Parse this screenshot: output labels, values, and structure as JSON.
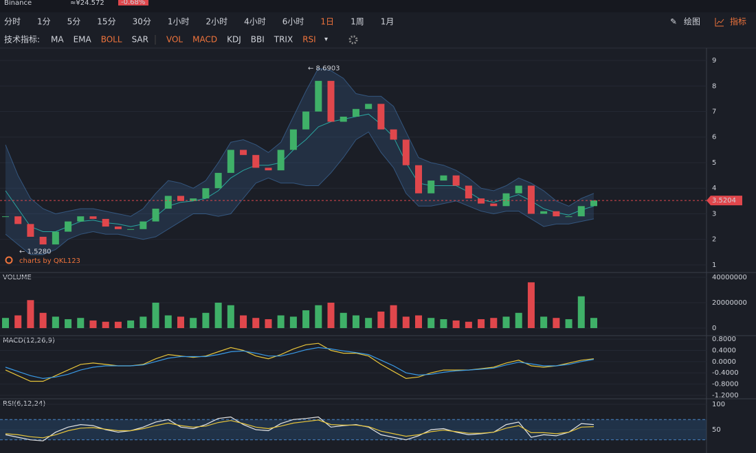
{
  "header": {
    "exchange": "Binance",
    "price": "≈¥24.572",
    "change": "-0.68%"
  },
  "toolbar": {
    "intervals": [
      {
        "label": "分时",
        "active": false
      },
      {
        "label": "1分",
        "active": false
      },
      {
        "label": "5分",
        "active": false
      },
      {
        "label": "15分",
        "active": false
      },
      {
        "label": "30分",
        "active": false
      },
      {
        "label": "1小时",
        "active": false
      },
      {
        "label": "2小时",
        "active": false
      },
      {
        "label": "4小时",
        "active": false
      },
      {
        "label": "6小时",
        "active": false
      },
      {
        "label": "1日",
        "active": true
      },
      {
        "label": "1周",
        "active": false
      },
      {
        "label": "1月",
        "active": false
      }
    ],
    "draw": "绘图",
    "indicators_button": "指标",
    "indicator_title": "技术指标:",
    "indicators": [
      {
        "label": "MA",
        "active": false
      },
      {
        "label": "EMA",
        "active": false
      },
      {
        "label": "BOLL",
        "active": true
      },
      {
        "label": "SAR",
        "active": false
      },
      {
        "label": "VOL",
        "active": true
      },
      {
        "label": "MACD",
        "active": true
      },
      {
        "label": "KDJ",
        "active": false
      },
      {
        "label": "BBI",
        "active": false
      },
      {
        "label": "TRIX",
        "active": false
      },
      {
        "label": "RSI",
        "active": true
      }
    ]
  },
  "chart_data": [
    {
      "type": "candlestick",
      "up_color": "#3fb068",
      "down_color": "#e0474c",
      "band_color": "#4a86c8",
      "mid_color": "#2aa6a0",
      "close": [
        2.9,
        2.6,
        2.1,
        1.8,
        2.3,
        2.7,
        2.9,
        2.8,
        2.5,
        2.4,
        2.4,
        2.7,
        3.2,
        3.7,
        3.5,
        3.6,
        4.0,
        4.6,
        5.5,
        5.3,
        4.8,
        4.7,
        5.5,
        6.3,
        7.0,
        8.2,
        6.6,
        6.8,
        7.1,
        7.3,
        6.3,
        5.9,
        4.9,
        3.8,
        4.3,
        4.5,
        4.1,
        3.6,
        3.4,
        3.3,
        3.8,
        4.1,
        3.0,
        3.1,
        2.9,
        2.9,
        3.3,
        3.52
      ],
      "boll_upper": [
        5.7,
        4.5,
        3.6,
        3.2,
        3.0,
        3.1,
        3.2,
        3.2,
        3.1,
        3.0,
        2.9,
        3.2,
        3.8,
        4.3,
        4.2,
        4.0,
        4.3,
        5.0,
        5.8,
        5.9,
        5.7,
        5.4,
        5.8,
        6.8,
        7.8,
        8.7,
        8.6,
        8.3,
        7.7,
        7.6,
        7.6,
        7.2,
        6.2,
        5.2,
        5.0,
        4.9,
        4.7,
        4.4,
        4.0,
        3.9,
        4.1,
        4.4,
        4.2,
        3.9,
        3.5,
        3.3,
        3.6,
        3.8
      ],
      "boll_mid": [
        3.9,
        3.2,
        2.5,
        2.3,
        2.3,
        2.5,
        2.7,
        2.75,
        2.65,
        2.6,
        2.5,
        2.6,
        2.9,
        3.3,
        3.45,
        3.5,
        3.6,
        3.9,
        4.4,
        4.7,
        4.9,
        4.9,
        5.0,
        5.5,
        5.9,
        6.4,
        6.6,
        6.7,
        6.8,
        6.9,
        6.5,
        6.0,
        5.0,
        4.2,
        4.1,
        4.1,
        4.1,
        3.85,
        3.55,
        3.45,
        3.6,
        3.75,
        3.5,
        3.2,
        3.05,
        2.95,
        3.15,
        3.3
      ],
      "boll_lower": [
        2.2,
        1.8,
        1.4,
        1.4,
        1.6,
        2.0,
        2.2,
        2.3,
        2.2,
        2.2,
        2.1,
        2.0,
        2.1,
        2.4,
        2.7,
        3.0,
        3.0,
        2.9,
        3.0,
        3.6,
        4.2,
        4.4,
        4.2,
        4.2,
        4.1,
        4.1,
        4.6,
        5.2,
        5.9,
        6.2,
        5.4,
        4.8,
        3.8,
        3.3,
        3.3,
        3.4,
        3.5,
        3.3,
        3.1,
        3.0,
        3.1,
        3.1,
        2.8,
        2.5,
        2.6,
        2.6,
        2.7,
        2.8
      ],
      "ylim": [
        0.73,
        9.43
      ],
      "yticks": [
        1,
        2,
        3,
        4,
        5,
        6,
        7,
        8,
        9
      ],
      "annotations": [
        {
          "value": 8.6903,
          "label": "← 8.6903"
        },
        {
          "value": 1.528,
          "label": "← 1.5280"
        }
      ],
      "last_price": {
        "value": 3.5204,
        "label": "3.5204"
      },
      "watermark": "charts by QKL123"
    },
    {
      "type": "bar",
      "title": "VOLUME",
      "up_color": "#3fb068",
      "down_color": "#e0474c",
      "values": [
        8000000,
        10000000,
        22000000,
        12000000,
        9000000,
        7000000,
        8000000,
        6000000,
        5000000,
        5000000,
        6000000,
        9000000,
        20000000,
        10000000,
        9000000,
        8000000,
        12000000,
        20000000,
        18000000,
        10000000,
        8000000,
        7000000,
        10000000,
        9000000,
        14000000,
        18000000,
        20000000,
        12000000,
        10000000,
        8000000,
        13000000,
        18000000,
        9000000,
        10000000,
        8000000,
        7000000,
        6000000,
        5000000,
        7000000,
        8000000,
        9000000,
        12000000,
        36000000,
        9000000,
        8000000,
        7000000,
        25000000,
        8000000
      ],
      "ylim": [
        -4300000,
        43200000
      ],
      "yticks": [
        0,
        20000000,
        40000000
      ]
    },
    {
      "type": "line",
      "title": "MACD(12,26,9)",
      "series": [
        {
          "color": "#e8c53a",
          "values": [
            -0.3,
            -0.5,
            -0.7,
            -0.7,
            -0.5,
            -0.3,
            -0.1,
            -0.05,
            -0.1,
            -0.15,
            -0.15,
            -0.1,
            0.1,
            0.25,
            0.2,
            0.15,
            0.2,
            0.35,
            0.5,
            0.4,
            0.2,
            0.1,
            0.25,
            0.45,
            0.6,
            0.65,
            0.4,
            0.3,
            0.3,
            0.2,
            -0.1,
            -0.35,
            -0.6,
            -0.55,
            -0.4,
            -0.3,
            -0.3,
            -0.3,
            -0.25,
            -0.2,
            -0.05,
            0.05,
            -0.15,
            -0.2,
            -0.15,
            -0.05,
            0.05,
            0.1
          ]
        },
        {
          "color": "#3a9be8",
          "values": [
            -0.2,
            -0.35,
            -0.5,
            -0.6,
            -0.55,
            -0.45,
            -0.3,
            -0.2,
            -0.15,
            -0.15,
            -0.15,
            -0.12,
            0,
            0.12,
            0.18,
            0.18,
            0.18,
            0.25,
            0.35,
            0.38,
            0.3,
            0.2,
            0.2,
            0.3,
            0.42,
            0.5,
            0.45,
            0.38,
            0.32,
            0.25,
            0.05,
            -0.15,
            -0.4,
            -0.48,
            -0.45,
            -0.38,
            -0.33,
            -0.3,
            -0.27,
            -0.23,
            -0.12,
            -0.02,
            -0.08,
            -0.15,
            -0.15,
            -0.1,
            0,
            0.08
          ]
        }
      ],
      "ylim": [
        -1.25,
        0.9
      ],
      "yticks": [
        {
          "value": 0.8,
          "label": "0.8000"
        },
        {
          "value": 0.4,
          "label": "0.4000"
        },
        {
          "value": 0,
          "label": "0.0000"
        },
        {
          "value": -0.4,
          "label": "-0.4000"
        },
        {
          "value": -0.8,
          "label": "-0.8000"
        },
        {
          "value": -1.2,
          "label": "-1.2000"
        }
      ]
    },
    {
      "type": "line",
      "title": "RSI(6,12,24)",
      "series": [
        {
          "color": "#e6e6e6",
          "values": [
            40,
            35,
            30,
            28,
            45,
            55,
            60,
            58,
            50,
            45,
            48,
            55,
            65,
            70,
            55,
            52,
            60,
            72,
            75,
            60,
            50,
            48,
            62,
            70,
            72,
            75,
            55,
            58,
            60,
            55,
            40,
            35,
            30,
            38,
            50,
            52,
            45,
            40,
            42,
            45,
            60,
            65,
            35,
            40,
            38,
            45,
            62,
            60
          ]
        },
        {
          "color": "#e8c53a",
          "values": [
            42,
            40,
            36,
            34,
            40,
            48,
            53,
            54,
            51,
            48,
            48,
            52,
            58,
            63,
            58,
            55,
            57,
            64,
            68,
            62,
            55,
            52,
            57,
            63,
            66,
            69,
            60,
            59,
            59,
            56,
            47,
            42,
            37,
            40,
            46,
            49,
            46,
            43,
            43,
            45,
            53,
            58,
            44,
            44,
            42,
            45,
            55,
            56
          ]
        }
      ],
      "levels": [
        30,
        70
      ],
      "band_color": "#2a5a8a",
      "ylim": [
        4,
        109.5
      ],
      "yticks": [
        50,
        100
      ]
    }
  ]
}
